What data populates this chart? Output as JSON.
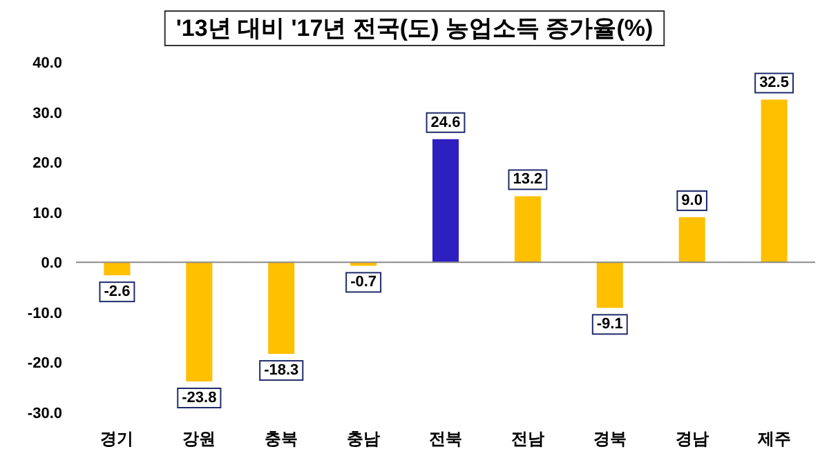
{
  "chart_data": {
    "type": "bar",
    "title": "'13년 대비 '17년 전국(도) 농업소득 증가율(%)",
    "categories": [
      "경기",
      "강원",
      "충북",
      "충남",
      "전북",
      "전남",
      "경북",
      "경남",
      "제주"
    ],
    "values": [
      -2.6,
      -23.8,
      -18.3,
      -0.7,
      24.6,
      13.2,
      -9.1,
      9.0,
      32.5
    ],
    "value_labels": [
      "-2.6",
      "-23.8",
      "-18.3",
      "-0.7",
      "24.6",
      "13.2",
      "-9.1",
      "9.0",
      "32.5"
    ],
    "colors": [
      "#ffc000",
      "#ffc000",
      "#ffc000",
      "#ffc000",
      "#2e1fc0",
      "#ffc000",
      "#ffc000",
      "#ffc000",
      "#ffc000"
    ],
    "ylim": [
      -30,
      40
    ],
    "yticks": [
      {
        "value": -30,
        "label": "-30.0"
      },
      {
        "value": -20,
        "label": "-20.0"
      },
      {
        "value": -10,
        "label": "-10.0"
      },
      {
        "value": 0,
        "label": "0.0"
      },
      {
        "value": 10,
        "label": "10.0"
      },
      {
        "value": 20,
        "label": "20.0"
      },
      {
        "value": 30,
        "label": "30.0"
      },
      {
        "value": 40,
        "label": "40.0"
      }
    ]
  }
}
